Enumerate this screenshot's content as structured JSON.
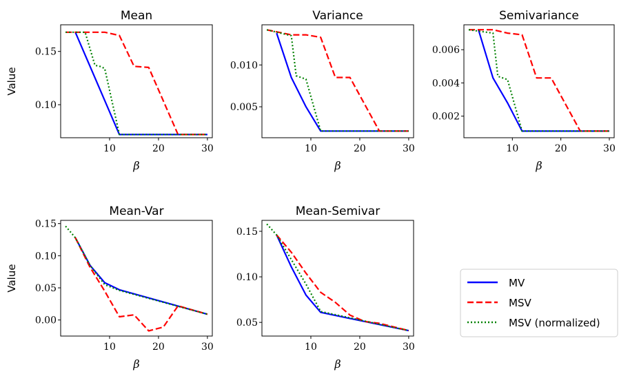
{
  "chart_data": [
    {
      "type": "line",
      "title": "Mean",
      "xlabel": "β",
      "ylabel": "Value",
      "xlim": [
        0,
        31
      ],
      "ylim": [
        0.069,
        0.175
      ],
      "xticks": [
        10,
        20,
        30
      ],
      "xtick_labels": [
        "10",
        "20",
        "30"
      ],
      "yticks": [
        0.1,
        0.15
      ],
      "ytick_labels": [
        "0.10",
        "0.15"
      ],
      "series": [
        {
          "name": "MV",
          "x": [
            3,
            12,
            30
          ],
          "y": [
            0.168,
            0.072,
            0.072
          ]
        },
        {
          "name": "MSV",
          "x": [
            1,
            9,
            12,
            15,
            18,
            24,
            30
          ],
          "y": [
            0.168,
            0.168,
            0.165,
            0.136,
            0.135,
            0.072,
            0.072
          ]
        },
        {
          "name": "MSV (normalized)",
          "x": [
            1,
            5,
            7,
            8,
            9,
            12,
            30
          ],
          "y": [
            0.168,
            0.168,
            0.137,
            0.136,
            0.134,
            0.072,
            0.072
          ]
        }
      ]
    },
    {
      "type": "line",
      "title": "Variance",
      "xlabel": "β",
      "ylabel": "",
      "xlim": [
        0,
        31
      ],
      "ylim": [
        0.0013,
        0.0148
      ],
      "xticks": [
        10,
        20,
        30
      ],
      "xtick_labels": [
        "10",
        "20",
        "30"
      ],
      "yticks": [
        0.005,
        0.01
      ],
      "ytick_labels": [
        "0.005",
        "0.010"
      ],
      "series": [
        {
          "name": "MV",
          "x": [
            3,
            6,
            9,
            12,
            30
          ],
          "y": [
            0.0138,
            0.0085,
            0.005,
            0.0021,
            0.0021
          ]
        },
        {
          "name": "MSV",
          "x": [
            1,
            6,
            9,
            12,
            15,
            18,
            24,
            30
          ],
          "y": [
            0.0142,
            0.0136,
            0.0136,
            0.0133,
            0.0085,
            0.0085,
            0.0021,
            0.0021
          ]
        },
        {
          "name": "MSV (normalized)",
          "x": [
            1,
            6,
            7,
            8,
            9,
            12,
            30
          ],
          "y": [
            0.0142,
            0.0135,
            0.0087,
            0.0085,
            0.0083,
            0.0021,
            0.0021
          ]
        }
      ]
    },
    {
      "type": "line",
      "title": "Semivariance",
      "xlabel": "β",
      "ylabel": "",
      "xlim": [
        0,
        31
      ],
      "ylim": [
        0.0007,
        0.0075
      ],
      "xticks": [
        10,
        20,
        30
      ],
      "xtick_labels": [
        "10",
        "20",
        "30"
      ],
      "yticks": [
        0.002,
        0.004,
        0.006
      ],
      "ytick_labels": [
        "0.002",
        "0.004",
        "0.006"
      ],
      "series": [
        {
          "name": "MV",
          "x": [
            3,
            6,
            9,
            12,
            30
          ],
          "y": [
            0.0072,
            0.0043,
            0.0028,
            0.0011,
            0.0011
          ]
        },
        {
          "name": "MSV",
          "x": [
            1,
            6,
            9,
            12,
            15,
            18,
            24,
            30
          ],
          "y": [
            0.0072,
            0.0072,
            0.007,
            0.0069,
            0.0043,
            0.0043,
            0.0011,
            0.0011
          ]
        },
        {
          "name": "MSV (normalized)",
          "x": [
            1,
            6,
            7,
            8,
            9,
            12,
            30
          ],
          "y": [
            0.0072,
            0.007,
            0.0044,
            0.0043,
            0.0042,
            0.0011,
            0.0011
          ]
        }
      ]
    },
    {
      "type": "line",
      "title": "Mean-Var",
      "xlabel": "β",
      "ylabel": "Value",
      "xlim": [
        0,
        31
      ],
      "ylim": [
        -0.025,
        0.155
      ],
      "xticks": [
        10,
        20,
        30
      ],
      "xtick_labels": [
        "10",
        "20",
        "30"
      ],
      "yticks": [
        0.0,
        0.05,
        0.1,
        0.15
      ],
      "ytick_labels": [
        "0.00",
        "0.05",
        "0.10",
        "0.15"
      ],
      "series": [
        {
          "name": "MV",
          "x": [
            3,
            6,
            9,
            12,
            30
          ],
          "y": [
            0.128,
            0.085,
            0.058,
            0.047,
            0.009
          ]
        },
        {
          "name": "MSV",
          "x": [
            3,
            6,
            9,
            12,
            15,
            18,
            21,
            24,
            30
          ],
          "y": [
            0.128,
            0.082,
            0.045,
            0.005,
            0.008,
            -0.017,
            -0.011,
            0.022,
            0.009
          ]
        },
        {
          "name": "MSV (normalized)",
          "x": [
            1,
            3,
            6,
            9,
            12,
            30
          ],
          "y": [
            0.146,
            0.128,
            0.085,
            0.055,
            0.046,
            0.009
          ]
        }
      ]
    },
    {
      "type": "line",
      "title": "Mean-Semivar",
      "xlabel": "β",
      "ylabel": "",
      "xlim": [
        0,
        31
      ],
      "ylim": [
        0.035,
        0.162
      ],
      "xticks": [
        10,
        20,
        30
      ],
      "xtick_labels": [
        "10",
        "20",
        "30"
      ],
      "yticks": [
        0.05,
        0.1,
        0.15
      ],
      "ytick_labels": [
        "0.05",
        "0.10",
        "0.15"
      ],
      "series": [
        {
          "name": "MV",
          "x": [
            3,
            6,
            9,
            12,
            30
          ],
          "y": [
            0.146,
            0.111,
            0.08,
            0.061,
            0.041
          ]
        },
        {
          "name": "MSV",
          "x": [
            3,
            6,
            9,
            12,
            15,
            18,
            21,
            24,
            30
          ],
          "y": [
            0.146,
            0.127,
            0.104,
            0.083,
            0.072,
            0.058,
            0.051,
            0.049,
            0.041
          ]
        },
        {
          "name": "MSV (normalized)",
          "x": [
            1,
            3,
            6,
            9,
            12,
            30
          ],
          "y": [
            0.158,
            0.146,
            0.119,
            0.092,
            0.062,
            0.041
          ]
        }
      ]
    }
  ],
  "legend": {
    "placement": "right of bottom row",
    "entries": [
      {
        "label": "MV",
        "color": "#0000ff",
        "style": "solid"
      },
      {
        "label": "MSV",
        "color": "#ff0000",
        "style": "dashed"
      },
      {
        "label": "MSV (normalized)",
        "color": "#008000",
        "style": "dotted"
      }
    ]
  },
  "series_styles": {
    "MV": {
      "color": "#0000ff",
      "style": "solid"
    },
    "MSV": {
      "color": "#ff0000",
      "style": "dashed"
    },
    "MSV (normalized)": {
      "color": "#008000",
      "style": "dotted"
    }
  }
}
